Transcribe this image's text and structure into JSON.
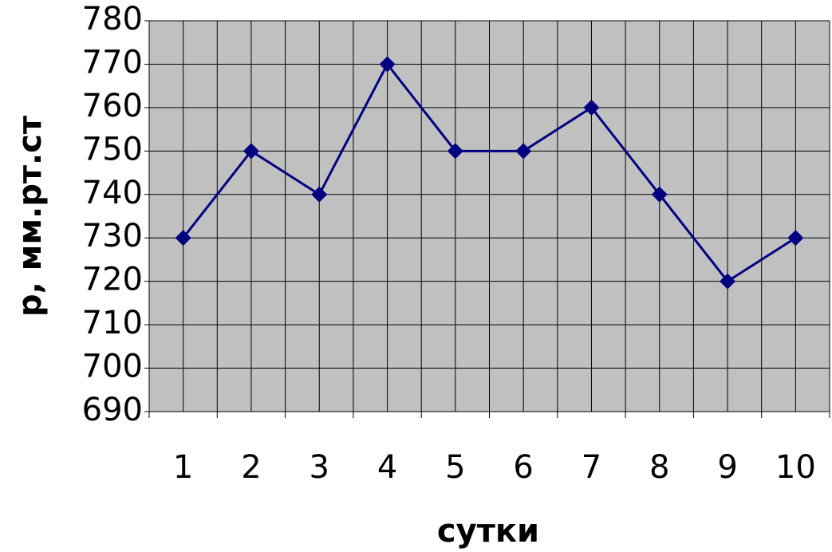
{
  "chart_data": {
    "type": "line",
    "x_label": "сутки",
    "y_label": "p, мм.рт.ст",
    "categories": [
      "1",
      "2",
      "3",
      "4",
      "5",
      "6",
      "7",
      "8",
      "9",
      "10"
    ],
    "series": [
      {
        "name": "p",
        "color": "#000080",
        "values": [
          730,
          750,
          740,
          770,
          750,
          750,
          760,
          740,
          720,
          730
        ]
      }
    ],
    "ylim": [
      690,
      780
    ],
    "yticks": [
      690,
      700,
      710,
      720,
      730,
      740,
      750,
      760,
      770,
      780
    ],
    "grid": true,
    "plot_background": "#c0c0c0"
  }
}
